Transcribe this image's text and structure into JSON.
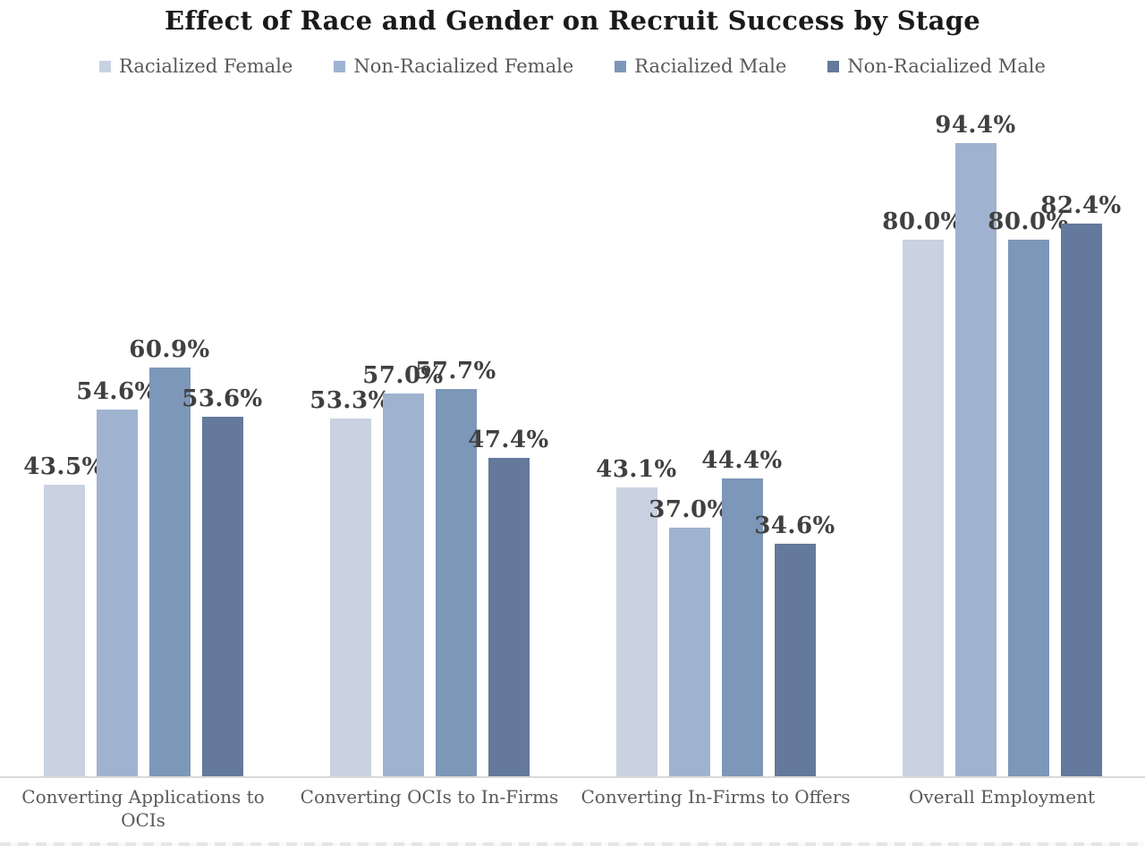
{
  "chart_data": {
    "type": "bar",
    "title": "Effect of Race and Gender on Recruit Success by Stage",
    "categories": [
      "Converting Applications to OCIs",
      "Converting OCIs to In-Firms",
      "Converting In-Firms to Offers",
      "Overall Employment"
    ],
    "series": [
      {
        "name": "Racialized Female",
        "color": "#c9d2e0",
        "values": [
          43.5,
          53.3,
          43.1,
          80.0
        ]
      },
      {
        "name": "Non-Racialized Female",
        "color": "#9fb3d0",
        "values": [
          54.6,
          57.0,
          37.0,
          94.4
        ]
      },
      {
        "name": "Racialized Male",
        "color": "#7d97b8",
        "values": [
          60.9,
          57.7,
          44.4,
          80.0
        ]
      },
      {
        "name": "Non-Racialized Male",
        "color": "#64799b",
        "values": [
          53.6,
          47.4,
          34.6,
          82.4
        ]
      }
    ],
    "value_label_suffix": "%",
    "value_label_decimals": 1,
    "ylim": [
      0,
      100
    ],
    "grid": false,
    "legend_position": "top",
    "axis_line_color": "#d9d9d9",
    "colors": {
      "title_text": "#1a1a1a",
      "legend_text": "#595959",
      "category_text": "#595959",
      "value_label_text": "#404040"
    }
  }
}
